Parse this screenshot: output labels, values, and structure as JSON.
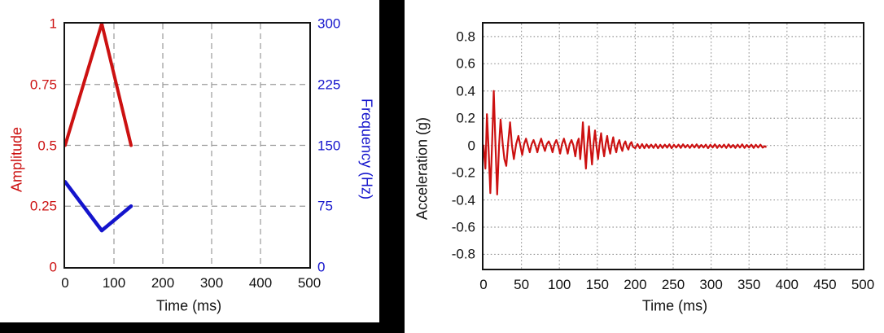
{
  "colors": {
    "red": "#cc1111",
    "blue": "#1414cc",
    "text": "#111111",
    "grid": "#9a9a9a",
    "frame": "#141414",
    "divider": "#000000"
  },
  "chart_data": [
    {
      "id": "sweep-profile",
      "type": "line",
      "xlabel": "Time (ms)",
      "xlim": [
        0,
        500
      ],
      "x_ticks": [
        {
          "v": 0,
          "label": "0"
        },
        {
          "v": 100,
          "label": "100"
        },
        {
          "v": 200,
          "label": "200"
        },
        {
          "v": 300,
          "label": "300"
        },
        {
          "v": 400,
          "label": "400"
        },
        {
          "v": 500,
          "label": "500"
        }
      ],
      "x_grid": [
        100,
        200,
        300,
        400
      ],
      "x_tick_color": "#111111",
      "grid_style": "dashed",
      "y_axes": [
        {
          "side": "left",
          "label": "Amplitude",
          "color": "#cc1111",
          "lim": [
            0,
            1
          ],
          "ticks": [
            {
              "v": 0,
              "label": "0"
            },
            {
              "v": 0.25,
              "label": "0.25"
            },
            {
              "v": 0.5,
              "label": "0.5"
            },
            {
              "v": 0.75,
              "label": "0.75"
            },
            {
              "v": 1,
              "label": "1"
            }
          ],
          "grid": [
            0.25,
            0.5,
            0.75
          ]
        },
        {
          "side": "right",
          "label": "Frequency (Hz)",
          "color": "#1414cc",
          "lim": [
            0,
            300
          ],
          "ticks": [
            {
              "v": 0,
              "label": "0"
            },
            {
              "v": 75,
              "label": "75"
            },
            {
              "v": 150,
              "label": "150"
            },
            {
              "v": 225,
              "label": "225"
            },
            {
              "v": 300,
              "label": "300"
            }
          ],
          "grid": []
        }
      ],
      "series": [
        {
          "name": "Amplitude",
          "yaxis": 0,
          "color": "#cc1111",
          "points": [
            [
              0,
              0.5
            ],
            [
              75,
              1.0
            ],
            [
              135,
              0.5
            ]
          ]
        },
        {
          "name": "Frequency",
          "yaxis": 1,
          "color": "#1414cc",
          "points": [
            [
              0,
              105
            ],
            [
              75,
              45
            ],
            [
              135,
              75
            ]
          ]
        }
      ]
    },
    {
      "id": "shock-response",
      "type": "line",
      "xlabel": "Time (ms)",
      "xlim": [
        0,
        500
      ],
      "x_ticks": [
        {
          "v": 0,
          "label": "0"
        },
        {
          "v": 50,
          "label": "50"
        },
        {
          "v": 100,
          "label": "100"
        },
        {
          "v": 150,
          "label": "150"
        },
        {
          "v": 200,
          "label": "200"
        },
        {
          "v": 250,
          "label": "250"
        },
        {
          "v": 300,
          "label": "300"
        },
        {
          "v": 350,
          "label": "350"
        },
        {
          "v": 400,
          "label": "400"
        },
        {
          "v": 450,
          "label": "450"
        },
        {
          "v": 500,
          "label": "500"
        }
      ],
      "x_grid": [
        50,
        100,
        150,
        200,
        250,
        300,
        350,
        400,
        450
      ],
      "x_tick_color": "#111111",
      "grid_style": "dotted",
      "y_axes": [
        {
          "side": "left",
          "label": "Acceleration (g)",
          "color": "#111111",
          "lim": [
            -0.905,
            0.895
          ],
          "ticks": [
            {
              "v": 0.8,
              "label": "0.8"
            },
            {
              "v": 0.6,
              "label": "0.6"
            },
            {
              "v": 0.4,
              "label": "0.4"
            },
            {
              "v": 0.2,
              "label": "0.2"
            },
            {
              "v": 0,
              "label": "0"
            },
            {
              "v": -0.2,
              "label": "-0.2"
            },
            {
              "v": -0.4,
              "label": "-0.4"
            },
            {
              "v": -0.6,
              "label": "-0.6"
            },
            {
              "v": -0.8,
              "label": "-0.8"
            }
          ],
          "grid": [
            0.8,
            0.6,
            0.4,
            0.2,
            0,
            -0.2,
            -0.4,
            -0.6,
            -0.8
          ]
        }
      ],
      "series": [
        {
          "name": "Acceleration",
          "yaxis": 0,
          "color": "#cc1111",
          "points": [
            [
              0,
              0
            ],
            [
              1,
              -0.07
            ],
            [
              2.5,
              -0.17
            ],
            [
              3.5,
              0.02
            ],
            [
              4.5,
              0.23
            ],
            [
              6.5,
              0
            ],
            [
              9,
              -0.35
            ],
            [
              11.2,
              0
            ],
            [
              13.5,
              0.4
            ],
            [
              15.8,
              0
            ],
            [
              18,
              -0.36
            ],
            [
              20.5,
              0
            ],
            [
              22.5,
              0.19
            ],
            [
              25.5,
              0
            ],
            [
              27.5,
              -0.1
            ],
            [
              30,
              -0.15
            ],
            [
              32.5,
              0.02
            ],
            [
              35,
              0.17
            ],
            [
              37.5,
              0
            ],
            [
              40,
              -0.1
            ],
            [
              43,
              0.01
            ],
            [
              46,
              0.07
            ],
            [
              48.5,
              0
            ],
            [
              51,
              -0.07
            ],
            [
              53.5,
              0.01
            ],
            [
              56,
              0.05
            ],
            [
              58.5,
              0
            ],
            [
              61,
              -0.05
            ],
            [
              63.5,
              0.01
            ],
            [
              66,
              0.04
            ],
            [
              68.5,
              0
            ],
            [
              71,
              -0.05
            ],
            [
              73.5,
              0.01
            ],
            [
              76,
              0.05
            ],
            [
              78.5,
              0
            ],
            [
              81,
              -0.04
            ],
            [
              83.5,
              0.01
            ],
            [
              86,
              0.03
            ],
            [
              88.5,
              0
            ],
            [
              91,
              -0.05
            ],
            [
              93.5,
              0.01
            ],
            [
              96,
              0.04
            ],
            [
              98.5,
              0
            ],
            [
              101,
              -0.06
            ],
            [
              103.5,
              0.01
            ],
            [
              106,
              0.05
            ],
            [
              108.5,
              0
            ],
            [
              111,
              -0.06
            ],
            [
              113.5,
              0.01
            ],
            [
              116,
              0.04
            ],
            [
              118.5,
              0
            ],
            [
              121,
              -0.08
            ],
            [
              123.5,
              0.02
            ],
            [
              125.5,
              0.05
            ],
            [
              127.5,
              -0.1
            ],
            [
              129.5,
              0.03
            ],
            [
              131,
              0.17
            ],
            [
              133,
              -0.02
            ],
            [
              135,
              -0.17
            ],
            [
              137,
              0.01
            ],
            [
              139,
              0.14
            ],
            [
              141,
              -0.01
            ],
            [
              143,
              -0.14
            ],
            [
              145,
              0.01
            ],
            [
              147,
              0.11
            ],
            [
              149,
              -0.01
            ],
            [
              151,
              -0.1
            ],
            [
              153,
              0.01
            ],
            [
              155,
              0.09
            ],
            [
              157,
              -0.01
            ],
            [
              159,
              -0.08
            ],
            [
              161,
              0.01
            ],
            [
              163,
              0.07
            ],
            [
              165,
              -0.01
            ],
            [
              167,
              -0.06
            ],
            [
              169,
              0.01
            ],
            [
              171,
              0.06
            ],
            [
              173,
              -0.01
            ],
            [
              175,
              -0.05
            ],
            [
              177,
              0.01
            ],
            [
              179,
              0.04
            ],
            [
              181,
              -0.01
            ],
            [
              183,
              -0.04
            ],
            [
              185,
              0.01
            ],
            [
              187,
              0.03
            ],
            [
              189,
              -0.01
            ],
            [
              191,
              -0.03
            ],
            [
              193,
              0.01
            ],
            [
              195,
              0.025
            ],
            [
              197,
              -0.01
            ],
            [
              200,
              -0.02
            ],
            [
              203,
              0.01
            ],
            [
              206,
              -0.02
            ],
            [
              209,
              0.01
            ],
            [
              212,
              -0.02
            ],
            [
              215,
              0.008
            ],
            [
              218,
              -0.018
            ],
            [
              221,
              0.006
            ],
            [
              224,
              -0.018
            ],
            [
              227,
              0.008
            ],
            [
              230,
              -0.02
            ],
            [
              233,
              0.005
            ],
            [
              236,
              -0.018
            ],
            [
              239,
              0.006
            ],
            [
              242,
              -0.016
            ],
            [
              245,
              0.008
            ],
            [
              248,
              -0.02
            ],
            [
              251,
              0.005
            ],
            [
              254,
              -0.015
            ],
            [
              257,
              0.006
            ],
            [
              260,
              -0.018
            ],
            [
              263,
              0.008
            ],
            [
              266,
              -0.015
            ],
            [
              269,
              0.004
            ],
            [
              272,
              -0.018
            ],
            [
              275,
              0.006
            ],
            [
              278,
              -0.015
            ],
            [
              281,
              0.008
            ],
            [
              284,
              -0.018
            ],
            [
              287,
              0.004
            ],
            [
              290,
              -0.015
            ],
            [
              293,
              0.006
            ],
            [
              296,
              -0.02
            ],
            [
              299,
              0.005
            ],
            [
              302,
              -0.015
            ],
            [
              305,
              0.008
            ],
            [
              308,
              -0.018
            ],
            [
              311,
              0.004
            ],
            [
              314,
              -0.015
            ],
            [
              317,
              0.006
            ],
            [
              320,
              -0.018
            ],
            [
              323,
              0.008
            ],
            [
              326,
              -0.015
            ],
            [
              329,
              0.004
            ],
            [
              332,
              -0.018
            ],
            [
              335,
              0.006
            ],
            [
              338,
              -0.015
            ],
            [
              341,
              0.008
            ],
            [
              344,
              -0.018
            ],
            [
              347,
              0.004
            ],
            [
              350,
              -0.015
            ],
            [
              353,
              0.006
            ],
            [
              356,
              -0.018
            ],
            [
              359,
              0.005
            ],
            [
              362,
              -0.015
            ],
            [
              365,
              0.006
            ],
            [
              368,
              -0.016
            ],
            [
              371,
              -0.005
            ],
            [
              372,
              -0.01
            ]
          ]
        }
      ]
    }
  ]
}
